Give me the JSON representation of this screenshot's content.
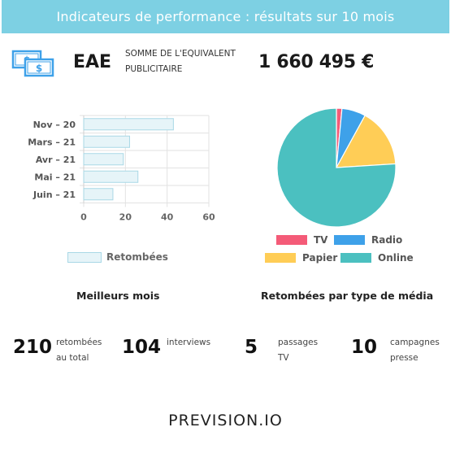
{
  "header": {
    "title": "Indicateurs de performance : résultats sur 10 mois"
  },
  "eae": {
    "label": "EAE",
    "description_line1": "SOMME DE L'EQUIVALENT",
    "description_line2": "PUBLICITAIRE",
    "value": "1 660 495 €"
  },
  "chart_data": [
    {
      "type": "bar",
      "orientation": "horizontal",
      "categories": [
        "Nov – 20",
        "Mars – 21",
        "Avr – 21",
        "Mai – 21",
        "Juin – 21"
      ],
      "series": [
        {
          "name": "Retombées",
          "values": [
            43,
            22,
            19,
            26,
            14
          ]
        }
      ],
      "xlim": [
        0,
        60
      ],
      "xticks": [
        "0",
        "20",
        "40",
        "60"
      ],
      "grid": true,
      "legend": "bottom",
      "colors": {
        "fill": "#e6f4f8",
        "stroke": "#a9d8e6"
      }
    },
    {
      "type": "pie",
      "labels": [
        "TV",
        "Radio",
        "Papier",
        "Online"
      ],
      "values": [
        1.5,
        6.5,
        16,
        76
      ],
      "colors": [
        "#f45b78",
        "#3ea1e9",
        "#ffcd56",
        "#4bc0c0"
      ],
      "legend": "bottom"
    }
  ],
  "sections": {
    "best_months": "Meilleurs mois",
    "by_media": "Retombées par type de média"
  },
  "stats": [
    {
      "value": "210",
      "line1": "retombées",
      "line2": "au total"
    },
    {
      "value": "104",
      "line1": "interviews",
      "line2": ""
    },
    {
      "value": "5",
      "line1": "passages",
      "line2": "TV"
    },
    {
      "value": "10",
      "line1": "campagnes",
      "line2": "presse"
    }
  ],
  "footer": {
    "logo_main": "PREVISION",
    "logo_suffix": ".IO"
  }
}
